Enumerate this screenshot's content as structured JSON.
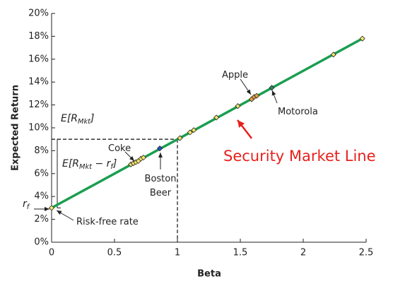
{
  "chart_data": {
    "type": "scatter",
    "x_label": "Beta",
    "y_label": "Expected Return",
    "xlim": [
      0,
      2.5
    ],
    "xticks": [
      0,
      0.5,
      1,
      1.5,
      2,
      2.5
    ],
    "ylim": [
      0,
      20
    ],
    "yticks": [
      {
        "value": 0,
        "label": "0%"
      },
      {
        "value": 2,
        "label": "2%"
      },
      {
        "value": 4,
        "label": "4%"
      },
      {
        "value": 6,
        "label": "6%"
      },
      {
        "value": 8,
        "label": "8%"
      },
      {
        "value": 10,
        "label": "10%"
      },
      {
        "value": 12,
        "label": "12%"
      },
      {
        "value": 14,
        "label": "14%"
      },
      {
        "value": 16,
        "label": "16%"
      },
      {
        "value": 18,
        "label": "18%"
      },
      {
        "value": 20,
        "label": "20%"
      }
    ],
    "line": {
      "color": "#1a9e50",
      "x": [
        0,
        2.47
      ],
      "values": [
        3,
        17.8
      ]
    },
    "market": {
      "x": 1,
      "value": 9
    },
    "series": [
      {
        "color": "#f2e46a",
        "x": [
          0,
          0.63,
          0.65,
          0.67,
          0.69,
          0.71,
          0.73,
          0.86,
          1.02,
          1.1,
          1.13,
          1.31,
          1.48,
          1.59,
          1.61,
          1.63,
          1.75,
          2.24,
          2.47
        ],
        "values": [
          3,
          6.8,
          6.9,
          7.0,
          7.1,
          7.3,
          7.4,
          8.2,
          9.1,
          9.6,
          9.8,
          10.9,
          11.9,
          12.5,
          12.7,
          12.8,
          13.5,
          16.4,
          17.8
        ],
        "colors": [
          "#f2e46a",
          "#f2e46a",
          "#f2e46a",
          "#f2e46a",
          "#f2e46a",
          "#f2e46a",
          "#f2e46a",
          "#2a4fd0",
          "#f2e46a",
          "#f2e46a",
          "#f2e46a",
          "#f2e46a",
          "#f2e46a",
          "#e8a040",
          "#e8a040",
          "#e8a040",
          "#2a8f5a",
          "#f2e46a",
          "#f2e46a"
        ]
      }
    ],
    "annotations": [
      {
        "parts": [
          {
            "t": "E[R"
          },
          {
            "t": "Mkt",
            "sub": true
          },
          {
            "t": "]"
          }
        ]
      },
      {
        "parts": [
          {
            "t": "E[R"
          },
          {
            "t": "Mkt",
            "sub": true
          },
          {
            "t": " − r"
          },
          {
            "t": "f",
            "sub": true
          },
          {
            "t": "]"
          }
        ]
      },
      {
        "parts": [
          {
            "t": "r"
          },
          {
            "t": "f",
            "sub": true
          }
        ]
      },
      {
        "parts": [
          {
            "t": "Coke"
          }
        ]
      },
      {
        "parts": [
          {
            "t": "Boston"
          }
        ]
      },
      {
        "parts": [
          {
            "t": "Beer"
          }
        ]
      },
      {
        "parts": [
          {
            "t": "Apple"
          }
        ]
      },
      {
        "parts": [
          {
            "t": "Motorola"
          }
        ]
      },
      {
        "parts": [
          {
            "t": "Risk-free rate"
          }
        ]
      },
      {
        "parts": [
          {
            "t": "Security Market Line"
          }
        ],
        "color": "#e8201c"
      }
    ]
  }
}
